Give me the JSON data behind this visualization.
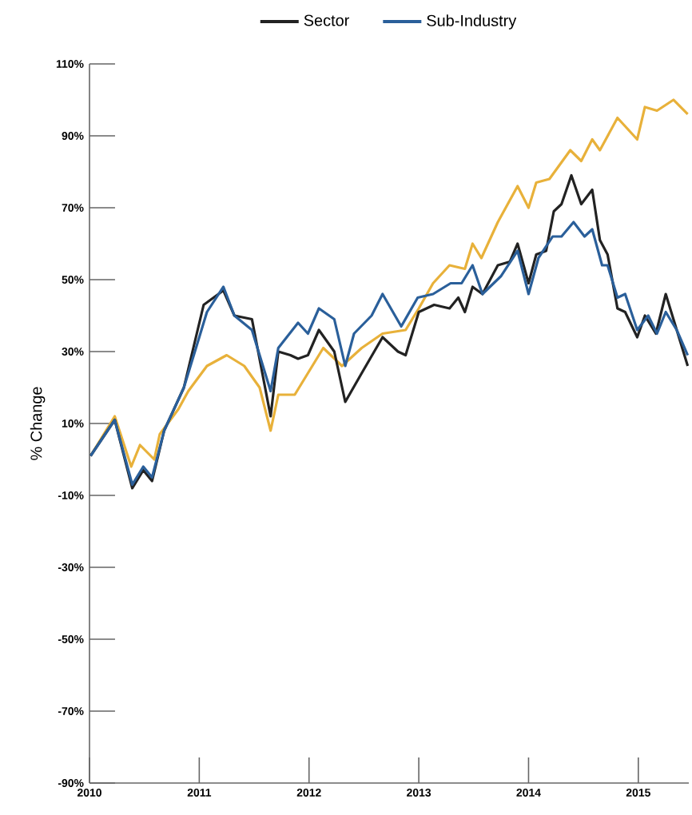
{
  "chart_data": {
    "type": "line",
    "ylabel": "% Change",
    "legend": "top",
    "marker": "none",
    "line_style": "solid",
    "grid": false,
    "xlim": [
      2010,
      2015.46
    ],
    "xticks": [
      2010,
      2011,
      2012,
      2013,
      2014,
      2015
    ],
    "ylim": [
      -90,
      110
    ],
    "yticks": [
      {
        "value": 110,
        "label": "110%"
      },
      {
        "value": 90,
        "label": "90%"
      },
      {
        "value": 70,
        "label": "70%"
      },
      {
        "value": 50,
        "label": "50%"
      },
      {
        "value": 30,
        "label": "30%"
      },
      {
        "value": 10,
        "label": "10%"
      },
      {
        "value": -10,
        "label": "-10%"
      },
      {
        "value": -30,
        "label": "-30%"
      },
      {
        "value": -50,
        "label": "-50%"
      },
      {
        "value": -70,
        "label": "-70%"
      },
      {
        "value": -90,
        "label": "-90%"
      }
    ],
    "series": [
      {
        "color": "#e8b13a",
        "x": [
          2010.01,
          2010.23,
          2010.38,
          2010.46,
          2010.59,
          2010.64,
          2010.81,
          2010.9,
          2011.07,
          2011.25,
          2011.41,
          2011.55,
          2011.65,
          2011.72,
          2011.87,
          2012.09,
          2012.13,
          2012.3,
          2012.48,
          2012.67,
          2012.88,
          2013.0,
          2013.13,
          2013.28,
          2013.42,
          2013.49,
          2013.57,
          2013.72,
          2013.9,
          2014.0,
          2014.07,
          2014.19,
          2014.38,
          2014.48,
          2014.58,
          2014.65,
          2014.81,
          2014.99,
          2015.06,
          2015.17,
          2015.32,
          2015.45
        ],
        "values": [
          1,
          12,
          -2,
          4,
          0,
          7,
          14,
          19,
          26,
          29,
          26,
          20,
          8,
          18,
          18,
          29,
          31,
          26,
          31,
          35,
          36,
          42,
          49,
          54,
          53,
          60,
          56,
          66,
          76,
          70,
          77,
          78,
          86,
          83,
          89,
          86,
          95,
          89,
          98,
          97,
          100,
          96
        ]
      },
      {
        "name": "Sector",
        "color": "#222222",
        "x": [
          2010.01,
          2010.23,
          2010.39,
          2010.49,
          2010.57,
          2010.68,
          2010.86,
          2011.04,
          2011.22,
          2011.32,
          2011.48,
          2011.65,
          2011.72,
          2011.83,
          2011.9,
          2011.99,
          2012.09,
          2012.23,
          2012.33,
          2012.48,
          2012.67,
          2012.81,
          2012.88,
          2013.0,
          2013.14,
          2013.28,
          2013.36,
          2013.42,
          2013.49,
          2013.58,
          2013.72,
          2013.83,
          2013.9,
          2014.0,
          2014.07,
          2014.16,
          2014.23,
          2014.3,
          2014.39,
          2014.48,
          2014.58,
          2014.65,
          2014.72,
          2014.81,
          2014.88,
          2014.99,
          2015.06,
          2015.16,
          2015.25,
          2015.32,
          2015.45
        ],
        "values": [
          1,
          11,
          -8,
          -3,
          -6,
          8,
          20,
          43,
          47,
          40,
          39,
          12,
          30,
          29,
          28,
          29,
          36,
          30,
          16,
          24,
          34,
          30,
          29,
          41,
          43,
          42,
          45,
          41,
          48,
          46,
          54,
          55,
          60,
          49,
          57,
          58,
          69,
          71,
          79,
          71,
          75,
          61,
          57,
          42,
          41,
          34,
          40,
          35,
          46,
          39,
          26
        ]
      },
      {
        "name": "Sub-Industry",
        "color": "#2a5f9a",
        "x": [
          2010.01,
          2010.23,
          2010.39,
          2010.49,
          2010.57,
          2010.68,
          2010.86,
          2011.07,
          2011.22,
          2011.32,
          2011.48,
          2011.65,
          2011.72,
          2011.9,
          2011.99,
          2012.09,
          2012.23,
          2012.33,
          2012.41,
          2012.57,
          2012.67,
          2012.84,
          2012.99,
          2013.13,
          2013.29,
          2013.39,
          2013.49,
          2013.58,
          2013.75,
          2013.9,
          2014.0,
          2014.09,
          2014.22,
          2014.3,
          2014.41,
          2014.51,
          2014.58,
          2014.67,
          2014.72,
          2014.81,
          2014.88,
          2014.99,
          2015.09,
          2015.17,
          2015.25,
          2015.35,
          2015.45
        ],
        "values": [
          1,
          11,
          -7,
          -2,
          -5,
          8,
          20,
          41,
          48,
          40,
          36,
          19,
          31,
          38,
          35,
          42,
          39,
          26,
          35,
          40,
          46,
          37,
          45,
          46,
          49,
          49,
          54,
          46,
          51,
          58,
          46,
          56,
          62,
          62,
          66,
          62,
          64,
          54,
          54,
          45,
          46,
          36,
          40,
          35,
          41,
          36,
          29
        ]
      }
    ]
  }
}
